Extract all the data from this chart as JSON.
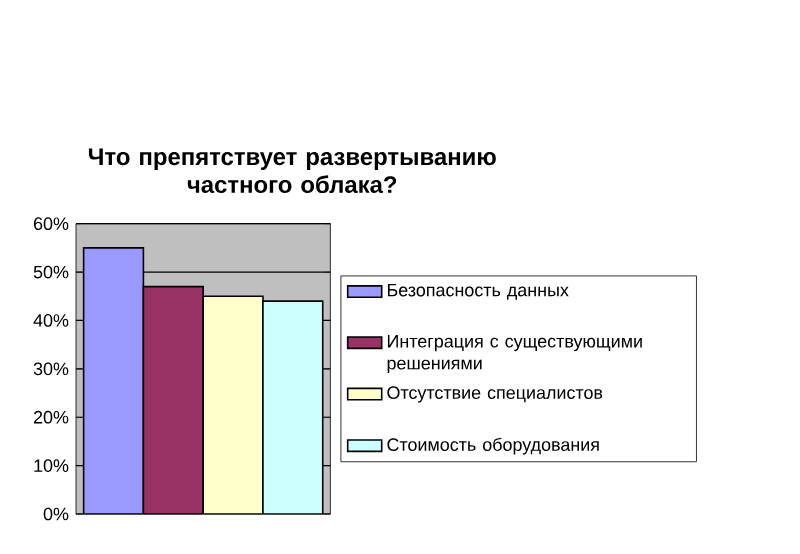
{
  "chart_data": {
    "type": "bar",
    "title": "Что препятствует развертыванию частного облака?",
    "categories": [
      null
    ],
    "series": [
      {
        "name": "Безопасность данных",
        "color": "#9999ff",
        "values": [
          55
        ]
      },
      {
        "name": "Интеграция с существующими решениями",
        "color": "#993366",
        "values": [
          47
        ]
      },
      {
        "name": "Отсутствие специалистов",
        "color": "#ffffcc",
        "values": [
          45
        ]
      },
      {
        "name": "Стоимость оборудования",
        "color": "#ccffff",
        "values": [
          44
        ]
      }
    ],
    "ylim": [
      0,
      60
    ],
    "yticks": [
      {
        "value": 0,
        "label": "0%"
      },
      {
        "value": 10,
        "label": "10%"
      },
      {
        "value": 20,
        "label": "20%"
      },
      {
        "value": 30,
        "label": "30%"
      },
      {
        "value": 40,
        "label": "40%"
      },
      {
        "value": 50,
        "label": "50%"
      },
      {
        "value": 60,
        "label": "60%"
      }
    ],
    "grid": "y",
    "legend": "right"
  }
}
